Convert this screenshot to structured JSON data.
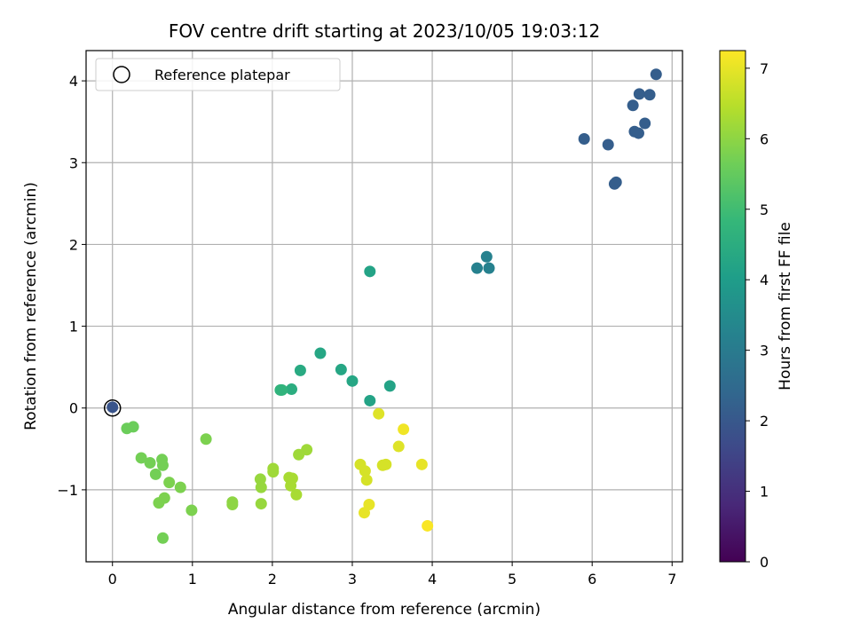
{
  "chart_data": {
    "type": "scatter",
    "title": "FOV centre drift starting at 2023/10/05 19:03:12",
    "xlabel": "Angular distance from reference (arcmin)",
    "ylabel": "Rotation from reference (arcmin)",
    "xlim": [
      -0.33,
      7.13
    ],
    "ylim": [
      -1.88,
      4.37
    ],
    "xticks": [
      0,
      1,
      2,
      3,
      4,
      5,
      6,
      7
    ],
    "yticks": [
      -1,
      0,
      1,
      2,
      3,
      4
    ],
    "xtick_labels": [
      "0",
      "1",
      "2",
      "3",
      "4",
      "5",
      "6",
      "7"
    ],
    "ytick_labels": [
      "−1",
      "0",
      "1",
      "2",
      "3",
      "4"
    ],
    "grid": true,
    "legend": {
      "position": "top-left",
      "entries": [
        {
          "label": "Reference platepar",
          "marker": "open-circle"
        }
      ]
    },
    "reference_point": {
      "x": 0,
      "y": 0,
      "hours": 1.9
    },
    "colorbar": {
      "label": "Hours from first FF file",
      "min": 0,
      "max": 7.25,
      "ticks": [
        0,
        1,
        2,
        3,
        4,
        5,
        6,
        7
      ],
      "colormap": "viridis",
      "colors": [
        "#440154",
        "#482878",
        "#3e4989",
        "#31688e",
        "#26828e",
        "#1f9e89",
        "#35b779",
        "#6ece58",
        "#b5de2b",
        "#fde725"
      ]
    },
    "points": [
      {
        "x": 6.8,
        "y": 4.08,
        "hours": 2.15
      },
      {
        "x": 6.59,
        "y": 3.84,
        "hours": 2.15
      },
      {
        "x": 6.72,
        "y": 3.83,
        "hours": 2.15
      },
      {
        "x": 6.51,
        "y": 3.7,
        "hours": 2.15
      },
      {
        "x": 6.66,
        "y": 3.48,
        "hours": 2.15
      },
      {
        "x": 6.53,
        "y": 3.38,
        "hours": 2.15
      },
      {
        "x": 6.58,
        "y": 3.36,
        "hours": 2.15
      },
      {
        "x": 5.9,
        "y": 3.29,
        "hours": 2.15
      },
      {
        "x": 6.2,
        "y": 3.22,
        "hours": 2.15
      },
      {
        "x": 6.3,
        "y": 2.76,
        "hours": 2.15
      },
      {
        "x": 6.28,
        "y": 2.74,
        "hours": 2.15
      },
      {
        "x": 4.68,
        "y": 1.85,
        "hours": 3.2
      },
      {
        "x": 4.56,
        "y": 1.71,
        "hours": 3.2
      },
      {
        "x": 4.71,
        "y": 1.71,
        "hours": 3.2
      },
      {
        "x": 3.22,
        "y": 1.67,
        "hours": 4.2
      },
      {
        "x": 2.6,
        "y": 0.67,
        "hours": 4.3
      },
      {
        "x": 2.86,
        "y": 0.47,
        "hours": 4.3
      },
      {
        "x": 2.35,
        "y": 0.46,
        "hours": 4.4
      },
      {
        "x": 3.0,
        "y": 0.33,
        "hours": 4.3
      },
      {
        "x": 3.47,
        "y": 0.27,
        "hours": 4.2
      },
      {
        "x": 2.24,
        "y": 0.23,
        "hours": 4.5
      },
      {
        "x": 2.1,
        "y": 0.22,
        "hours": 4.7
      },
      {
        "x": 2.12,
        "y": 0.22,
        "hours": 4.7
      },
      {
        "x": 3.22,
        "y": 0.09,
        "hours": 4.2
      },
      {
        "x": 0.0,
        "y": 0.01,
        "hours": 1.9
      },
      {
        "x": 3.33,
        "y": -0.07,
        "hours": 6.9
      },
      {
        "x": 0.26,
        "y": -0.23,
        "hours": 5.6
      },
      {
        "x": 0.18,
        "y": -0.25,
        "hours": 5.6
      },
      {
        "x": 3.64,
        "y": -0.26,
        "hours": 7.1
      },
      {
        "x": 1.17,
        "y": -0.38,
        "hours": 5.8
      },
      {
        "x": 3.58,
        "y": -0.47,
        "hours": 6.9
      },
      {
        "x": 2.43,
        "y": -0.51,
        "hours": 6.2
      },
      {
        "x": 2.33,
        "y": -0.57,
        "hours": 6.2
      },
      {
        "x": 0.36,
        "y": -0.61,
        "hours": 5.7
      },
      {
        "x": 0.62,
        "y": -0.63,
        "hours": 5.7
      },
      {
        "x": 0.47,
        "y": -0.67,
        "hours": 5.7
      },
      {
        "x": 3.1,
        "y": -0.69,
        "hours": 6.8
      },
      {
        "x": 3.38,
        "y": -0.7,
        "hours": 6.8
      },
      {
        "x": 3.42,
        "y": -0.69,
        "hours": 6.8
      },
      {
        "x": 3.87,
        "y": -0.69,
        "hours": 7.0
      },
      {
        "x": 0.63,
        "y": -0.7,
        "hours": 5.7
      },
      {
        "x": 2.01,
        "y": -0.74,
        "hours": 6.2
      },
      {
        "x": 2.01,
        "y": -0.78,
        "hours": 6.2
      },
      {
        "x": 3.16,
        "y": -0.77,
        "hours": 6.8
      },
      {
        "x": 0.54,
        "y": -0.81,
        "hours": 5.7
      },
      {
        "x": 2.21,
        "y": -0.85,
        "hours": 6.3
      },
      {
        "x": 2.25,
        "y": -0.86,
        "hours": 6.3
      },
      {
        "x": 1.85,
        "y": -0.87,
        "hours": 6.1
      },
      {
        "x": 3.18,
        "y": -0.88,
        "hours": 6.8
      },
      {
        "x": 0.71,
        "y": -0.91,
        "hours": 5.8
      },
      {
        "x": 2.23,
        "y": -0.95,
        "hours": 6.3
      },
      {
        "x": 0.85,
        "y": -0.97,
        "hours": 5.8
      },
      {
        "x": 1.86,
        "y": -0.97,
        "hours": 6.1
      },
      {
        "x": 2.3,
        "y": -1.06,
        "hours": 6.3
      },
      {
        "x": 0.65,
        "y": -1.1,
        "hours": 5.8
      },
      {
        "x": 0.58,
        "y": -1.16,
        "hours": 5.8
      },
      {
        "x": 1.5,
        "y": -1.15,
        "hours": 6.0
      },
      {
        "x": 1.5,
        "y": -1.18,
        "hours": 6.0
      },
      {
        "x": 1.86,
        "y": -1.17,
        "hours": 6.1
      },
      {
        "x": 3.21,
        "y": -1.18,
        "hours": 7.0
      },
      {
        "x": 0.99,
        "y": -1.25,
        "hours": 5.8
      },
      {
        "x": 3.15,
        "y": -1.28,
        "hours": 7.0
      },
      {
        "x": 3.94,
        "y": -1.44,
        "hours": 7.2
      },
      {
        "x": 0.63,
        "y": -1.59,
        "hours": 5.7
      }
    ]
  }
}
